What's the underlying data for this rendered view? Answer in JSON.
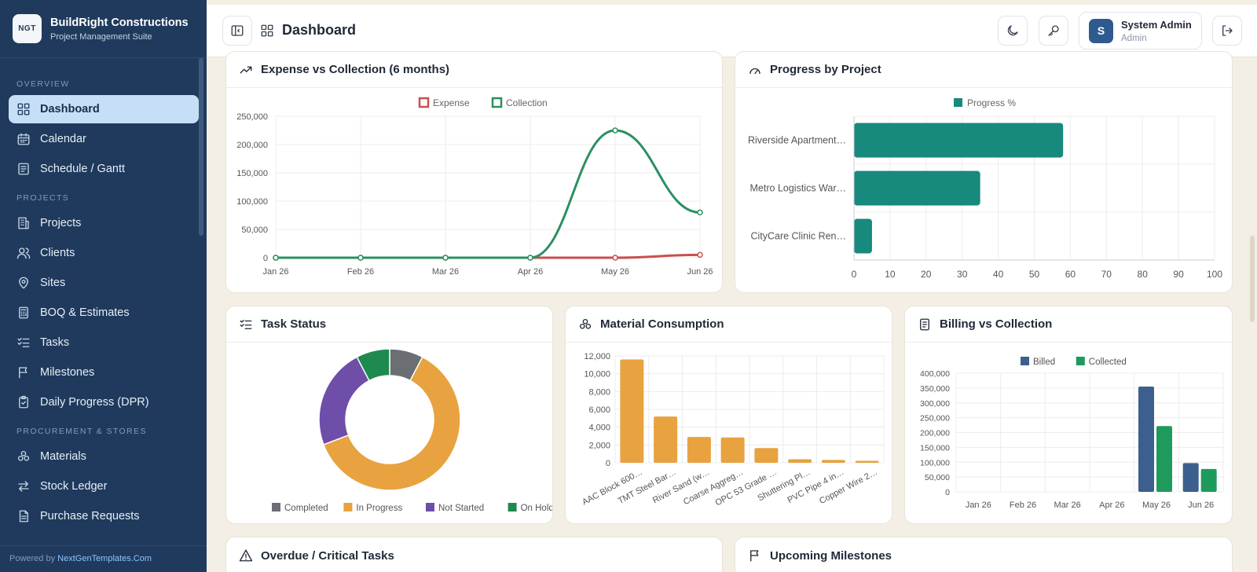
{
  "brand": {
    "name": "BuildRight Constructions",
    "subtitle": "Project Management Suite",
    "logo_text": "NGT"
  },
  "sidebar": {
    "sections": [
      {
        "title": "OVERVIEW",
        "items": [
          {
            "label": "Dashboard",
            "icon": "grid-icon",
            "active": true
          },
          {
            "label": "Calendar",
            "icon": "calendar-icon"
          },
          {
            "label": "Schedule / Gantt",
            "icon": "list-box-icon"
          }
        ]
      },
      {
        "title": "PROJECTS",
        "items": [
          {
            "label": "Projects",
            "icon": "building-icon"
          },
          {
            "label": "Clients",
            "icon": "users-icon"
          },
          {
            "label": "Sites",
            "icon": "map-pin-icon"
          },
          {
            "label": "BOQ & Estimates",
            "icon": "calculator-icon"
          },
          {
            "label": "Tasks",
            "icon": "checklist-icon"
          },
          {
            "label": "Milestones",
            "icon": "flag-icon"
          },
          {
            "label": "Daily Progress (DPR)",
            "icon": "clipboard-icon"
          }
        ]
      },
      {
        "title": "PROCUREMENT & STORES",
        "items": [
          {
            "label": "Materials",
            "icon": "boxes-icon"
          },
          {
            "label": "Stock Ledger",
            "icon": "arrows-icon"
          },
          {
            "label": "Purchase Requests",
            "icon": "file-icon"
          }
        ]
      }
    ],
    "footer_prefix": "Powered by ",
    "footer_link": "NextGenTemplates.Com"
  },
  "header": {
    "title": "Dashboard",
    "user_initial": "S",
    "user_name": "System Admin",
    "user_role": "Admin"
  },
  "cards": {
    "expense": "Expense vs Collection (6 months)",
    "progress": "Progress by Project",
    "task": "Task Status",
    "material": "Material Consumption",
    "billing": "Billing vs Collection",
    "overdue": "Overdue / Critical Tasks",
    "milestones": "Upcoming Milestones"
  },
  "colors": {
    "expense": "#c94f4f",
    "collection": "#2a9060",
    "progress": "#17897d",
    "material": "#e8a23f",
    "billed": "#3c5f8e",
    "collected": "#1f9a5d"
  },
  "chart_data": [
    {
      "type": "line",
      "x": [
        "Jan 26",
        "Feb 26",
        "Mar 26",
        "Apr 26",
        "May 26",
        "Jun 26"
      ],
      "series": [
        {
          "name": "Expense",
          "values": [
            0,
            0,
            0,
            0,
            0,
            5000
          ]
        },
        {
          "name": "Collection",
          "values": [
            0,
            0,
            0,
            0,
            225000,
            80000
          ]
        }
      ],
      "yticks": [
        "0",
        "50,000",
        "100,000",
        "150,000",
        "200,000",
        "250,000"
      ],
      "ylim": [
        0,
        250000
      ],
      "legend": "top"
    },
    {
      "type": "bar",
      "orientation": "horizontal",
      "categories": [
        "Riverside Apartment…",
        "Metro Logistics War…",
        "CityCare Clinic Ren…"
      ],
      "series": [
        {
          "name": "Progress %",
          "values": [
            58,
            35,
            5
          ]
        }
      ],
      "xticks": [
        "0",
        "10",
        "20",
        "30",
        "40",
        "50",
        "60",
        "70",
        "80",
        "90",
        "100"
      ],
      "xlim": [
        0,
        100
      ],
      "legend": "top"
    },
    {
      "type": "pie",
      "categories": [
        "Completed",
        "In Progress",
        "Not Started",
        "On Hold"
      ],
      "values": [
        1,
        8,
        3,
        1
      ],
      "colors": [
        "#6b6e73",
        "#e8a23f",
        "#6e4ea8",
        "#1f8a4f"
      ],
      "legend": "bottom"
    },
    {
      "type": "bar",
      "categories": [
        "AAC Block 600…",
        "TMT Steel Bar…",
        "River Sand (w…",
        "Coarse Aggreg…",
        "OPC 53 Grade …",
        "Shuttering Pl…",
        "PVC Pipe 4 in…",
        "Copper Wire 2…"
      ],
      "values": [
        11600,
        5200,
        2900,
        2850,
        1650,
        400,
        320,
        220
      ],
      "yticks": [
        "0",
        "2,000",
        "4,000",
        "6,000",
        "8,000",
        "10,000",
        "12,000"
      ],
      "ylim": [
        0,
        12000
      ]
    },
    {
      "type": "bar",
      "categories": [
        "Jan 26",
        "Feb 26",
        "Mar 26",
        "Apr 26",
        "May 26",
        "Jun 26"
      ],
      "series": [
        {
          "name": "Billed",
          "values": [
            0,
            0,
            0,
            0,
            355000,
            97000
          ]
        },
        {
          "name": "Collected",
          "values": [
            0,
            0,
            0,
            0,
            222000,
            77000
          ]
        }
      ],
      "yticks": [
        "0",
        "50,000",
        "100,000",
        "150,000",
        "200,000",
        "250,000",
        "300,000",
        "350,000",
        "400,000"
      ],
      "ylim": [
        0,
        400000
      ],
      "legend": "top"
    }
  ]
}
